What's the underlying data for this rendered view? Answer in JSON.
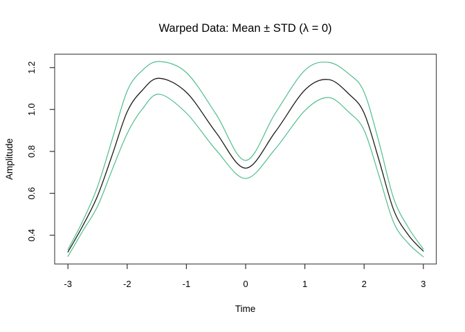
{
  "title": "Warped Data: Mean ± STD (λ = 0)",
  "axes": {
    "x": {
      "label": "Time",
      "tick_labels": [
        "-3",
        "-2",
        "-1",
        "0",
        "1",
        "2",
        "3"
      ],
      "tick_values": [
        -3,
        -2,
        -1,
        0,
        1,
        2,
        3
      ]
    },
    "y": {
      "label": "Amplitude",
      "tick_labels": [
        "0.4",
        "0.6",
        "0.8",
        "1.0",
        "1.2"
      ],
      "tick_values": [
        0.4,
        0.6,
        0.8,
        1.0,
        1.2
      ]
    }
  },
  "colors": {
    "mean_line": "#1a1a1a",
    "std_band_line": "#4fbd8c",
    "box": "#4d4d4d",
    "text": "#000000",
    "background": "#ffffff"
  },
  "chart_data": {
    "type": "line",
    "title": "Warped Data: Mean ± STD (λ = 0)",
    "xlabel": "Time",
    "ylabel": "Amplitude",
    "xlim": [
      -3.22,
      3.22
    ],
    "ylim": [
      0.25,
      1.27
    ],
    "grid": false,
    "legend_position": "none",
    "x": [
      -3,
      -2.75,
      -2.5,
      -2.25,
      -2,
      -1.75,
      -1.46,
      -1,
      -0.5,
      0,
      0.5,
      1,
      1.4,
      1.75,
      2,
      2.25,
      2.5,
      2.75,
      3
    ],
    "series": [
      {
        "name": "mean",
        "color": "#1a1a1a",
        "values": [
          0.32,
          0.445,
          0.588,
          0.785,
          0.989,
          1.09,
          1.149,
          1.082,
          0.89,
          0.72,
          0.893,
          1.093,
          1.143,
          1.072,
          0.983,
          0.76,
          0.52,
          0.4,
          0.324
        ]
      },
      {
        "name": "mean_plus_std",
        "color": "#4fbd8c",
        "values": [
          0.332,
          0.468,
          0.632,
          0.86,
          1.088,
          1.185,
          1.229,
          1.176,
          0.978,
          0.757,
          0.982,
          1.187,
          1.225,
          1.168,
          1.083,
          0.845,
          0.575,
          0.435,
          0.334
        ]
      },
      {
        "name": "mean_minus_std",
        "color": "#4fbd8c",
        "values": [
          0.299,
          0.42,
          0.538,
          0.715,
          0.885,
          1.0,
          1.073,
          0.983,
          0.807,
          0.671,
          0.812,
          0.995,
          1.057,
          0.985,
          0.901,
          0.685,
          0.46,
          0.36,
          0.297
        ]
      }
    ]
  }
}
